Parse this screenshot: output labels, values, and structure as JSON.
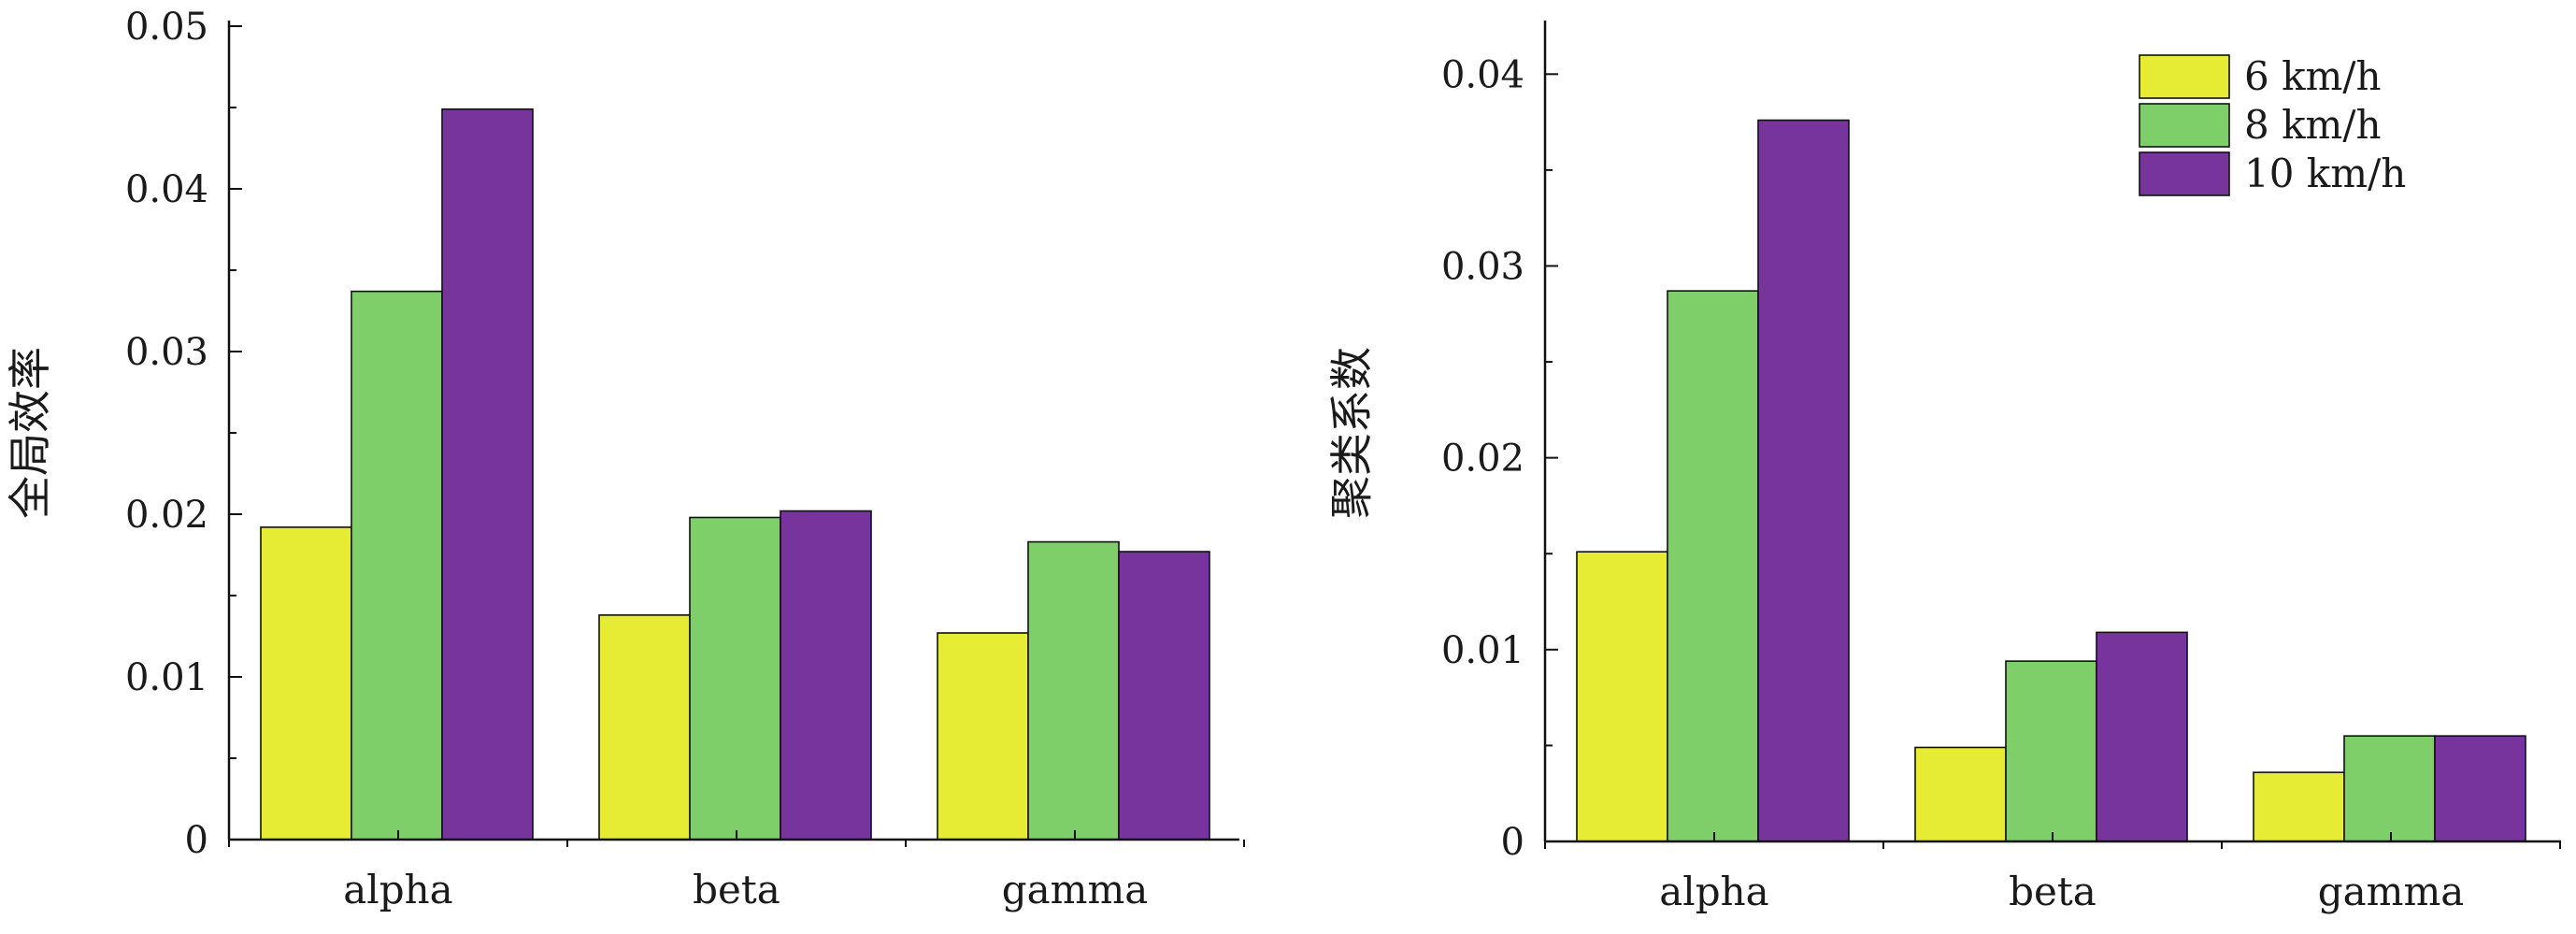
{
  "chart_data": [
    {
      "type": "bar",
      "categories": [
        "alpha",
        "beta",
        "gamma"
      ],
      "series": [
        {
          "name": "6 km/h",
          "values": [
            0.0192,
            0.0138,
            0.0127
          ]
        },
        {
          "name": "8 km/h",
          "values": [
            0.0337,
            0.0198,
            0.0183
          ]
        },
        {
          "name": "10 km/h",
          "values": [
            0.0449,
            0.0202,
            0.0177
          ]
        }
      ],
      "ylabel": "全局效率",
      "ylim": [
        0,
        0.05
      ],
      "yticks": [
        "0",
        "0.01",
        "0.02",
        "0.03",
        "0.04",
        "0.05"
      ],
      "grid": false,
      "legend": null
    },
    {
      "type": "bar",
      "categories": [
        "alpha",
        "beta",
        "gamma"
      ],
      "series": [
        {
          "name": "6 km/h",
          "values": [
            0.0151,
            0.0049,
            0.0036
          ]
        },
        {
          "name": "8 km/h",
          "values": [
            0.0287,
            0.0094,
            0.0055
          ]
        },
        {
          "name": "10 km/h",
          "values": [
            0.0376,
            0.0109,
            0.0055
          ]
        }
      ],
      "ylabel": "聚类系数",
      "ylim": [
        0,
        0.0425
      ],
      "yticks": [
        "0",
        "0.01",
        "0.02",
        "0.03",
        "0.04"
      ],
      "grid": false,
      "legend": "top-right"
    }
  ],
  "colors": {
    "6 km/h": "#e6eb33",
    "8 km/h": "#7ecf6a",
    "10 km/h": "#77349c"
  }
}
